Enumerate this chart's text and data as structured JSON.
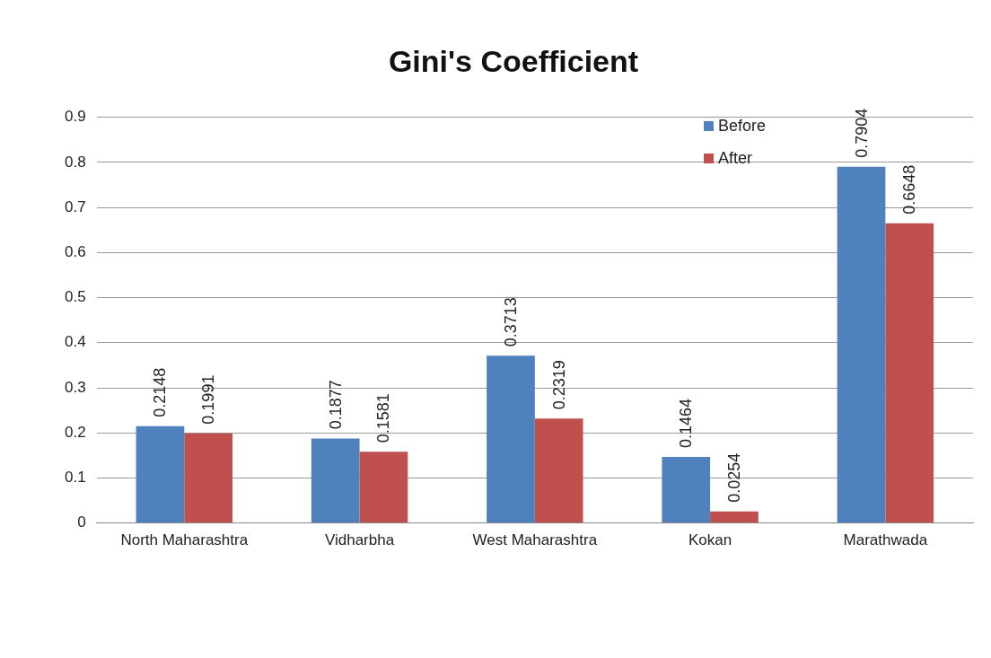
{
  "chart_data": {
    "type": "bar",
    "title": "Gini's Coefficient",
    "categories": [
      "North Maharashtra",
      "Vidharbha",
      "West Maharashtra",
      "Kokan",
      "Marathwada"
    ],
    "series": [
      {
        "name": "Before",
        "color": "#4f81bd",
        "values": [
          0.2148,
          0.1877,
          0.3713,
          0.1464,
          0.7904
        ]
      },
      {
        "name": "After",
        "color": "#c0504d",
        "values": [
          0.1991,
          0.1581,
          0.2319,
          0.0254,
          0.6648
        ]
      }
    ],
    "ylim": [
      0,
      0.9
    ],
    "yticks": [
      0,
      0.1,
      0.2,
      0.3,
      0.4,
      0.5,
      0.6,
      0.7,
      0.8,
      0.9
    ],
    "grid": "y",
    "legend": "top right",
    "data_labels": true
  }
}
